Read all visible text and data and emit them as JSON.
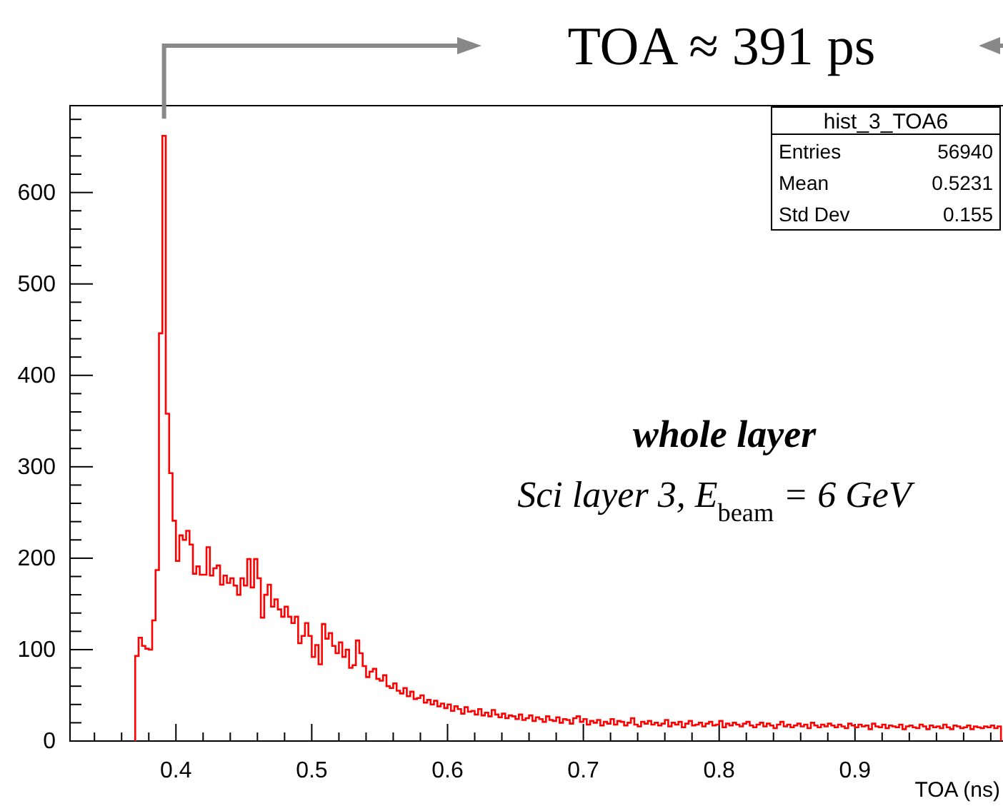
{
  "chart_data": {
    "type": "histogram",
    "xlabel": "TOA (ns)",
    "color": "#ff0000",
    "xlim": [
      0.322,
      1.009
    ],
    "ylim": [
      0,
      695
    ],
    "xticks": [
      {
        "value": 0.34,
        "label": null
      },
      {
        "value": 0.36,
        "label": null
      },
      {
        "value": 0.38,
        "label": null
      },
      0.4,
      {
        "value": 0.42,
        "label": null
      },
      {
        "value": 0.44,
        "label": null
      },
      {
        "value": 0.46,
        "label": null
      },
      {
        "value": 0.48,
        "label": null
      },
      0.5,
      {
        "value": 0.52,
        "label": null
      },
      {
        "value": 0.54,
        "label": null
      },
      {
        "value": 0.56,
        "label": null
      },
      {
        "value": 0.58,
        "label": null
      },
      0.6,
      {
        "value": 0.62,
        "label": null
      },
      {
        "value": 0.64,
        "label": null
      },
      {
        "value": 0.66,
        "label": null
      },
      {
        "value": 0.68,
        "label": null
      },
      0.7,
      {
        "value": 0.72,
        "label": null
      },
      {
        "value": 0.74,
        "label": null
      },
      {
        "value": 0.76,
        "label": null
      },
      {
        "value": 0.78,
        "label": null
      },
      0.8,
      {
        "value": 0.82,
        "label": null
      },
      {
        "value": 0.84,
        "label": null
      },
      {
        "value": 0.86,
        "label": null
      },
      {
        "value": 0.88,
        "label": null
      },
      0.9,
      {
        "value": 0.92,
        "label": null
      },
      {
        "value": 0.94,
        "label": null
      },
      {
        "value": 0.96,
        "label": null
      },
      {
        "value": 0.98,
        "label": null
      },
      {
        "value": 1.0,
        "label": null
      }
    ],
    "yticks": [
      0,
      {
        "value": 20,
        "label": null
      },
      {
        "value": 40,
        "label": null
      },
      {
        "value": 60,
        "label": null
      },
      {
        "value": 80,
        "label": null
      },
      100,
      {
        "value": 120,
        "label": null
      },
      {
        "value": 140,
        "label": null
      },
      {
        "value": 160,
        "label": null
      },
      {
        "value": 180,
        "label": null
      },
      200,
      {
        "value": 220,
        "label": null
      },
      {
        "value": 240,
        "label": null
      },
      {
        "value": 260,
        "label": null
      },
      {
        "value": 280,
        "label": null
      },
      300,
      {
        "value": 320,
        "label": null
      },
      {
        "value": 340,
        "label": null
      },
      {
        "value": 360,
        "label": null
      },
      {
        "value": 380,
        "label": null
      },
      400,
      {
        "value": 420,
        "label": null
      },
      {
        "value": 440,
        "label": null
      },
      {
        "value": 460,
        "label": null
      },
      {
        "value": 480,
        "label": null
      },
      500,
      {
        "value": 520,
        "label": null
      },
      {
        "value": 540,
        "label": null
      },
      {
        "value": 560,
        "label": null
      },
      {
        "value": 580,
        "label": null
      },
      600,
      {
        "value": 620,
        "label": null
      },
      {
        "value": 640,
        "label": null
      },
      {
        "value": 660,
        "label": null
      },
      {
        "value": 680,
        "label": null
      }
    ],
    "bins": [
      0.37,
      0.3725,
      0.375,
      0.3775,
      0.38,
      0.3825,
      0.385,
      0.3875,
      0.39,
      0.3925,
      0.395,
      0.3975,
      0.4,
      0.4025,
      0.405,
      0.4075,
      0.41,
      0.4125,
      0.415,
      0.4175,
      0.42,
      0.4225,
      0.425,
      0.4275,
      0.43,
      0.4325,
      0.435,
      0.4375,
      0.44,
      0.4425,
      0.445,
      0.4475,
      0.45,
      0.4525,
      0.455,
      0.4575,
      0.46,
      0.4625,
      0.465,
      0.4675,
      0.47,
      0.4725,
      0.475,
      0.4775,
      0.48,
      0.4825,
      0.485,
      0.4875,
      0.49,
      0.4925,
      0.495,
      0.4975,
      0.5,
      0.5025,
      0.505,
      0.5075,
      0.51,
      0.5125,
      0.515,
      0.5175,
      0.52,
      0.5225,
      0.525,
      0.5275,
      0.53,
      0.5325,
      0.535,
      0.5375,
      0.54,
      0.5425,
      0.545,
      0.5475,
      0.55,
      0.5525,
      0.555,
      0.5575,
      0.56,
      0.5625,
      0.565,
      0.5675,
      0.57,
      0.5725,
      0.575,
      0.5775,
      0.58,
      0.5825,
      0.585,
      0.5875,
      0.59,
      0.5925,
      0.595,
      0.5975,
      0.6,
      0.6025,
      0.605,
      0.6075,
      0.61,
      0.6125,
      0.615,
      0.6175,
      0.62,
      0.6225,
      0.625,
      0.6275,
      0.63,
      0.6325,
      0.635,
      0.6375,
      0.64,
      0.6425,
      0.645,
      0.6475,
      0.65,
      0.6525,
      0.655,
      0.6575,
      0.66,
      0.6625,
      0.665,
      0.6675,
      0.67,
      0.6725,
      0.675,
      0.6775,
      0.68,
      0.6825,
      0.685,
      0.6875,
      0.69,
      0.6925,
      0.695,
      0.6975,
      0.7,
      0.7025,
      0.705,
      0.7075,
      0.71,
      0.7125,
      0.715,
      0.7175,
      0.72,
      0.7225,
      0.725,
      0.7275,
      0.73,
      0.7325,
      0.735,
      0.7375,
      0.74,
      0.7425,
      0.745,
      0.7475,
      0.75,
      0.7525,
      0.755,
      0.7575,
      0.76,
      0.7625,
      0.765,
      0.7675,
      0.77,
      0.7725,
      0.775,
      0.7775,
      0.78,
      0.7825,
      0.785,
      0.7875,
      0.79,
      0.7925,
      0.795,
      0.7975,
      0.8,
      0.8025,
      0.805,
      0.8075,
      0.81,
      0.8125,
      0.815,
      0.8175,
      0.82,
      0.8225,
      0.825,
      0.8275,
      0.83,
      0.8325,
      0.835,
      0.8375,
      0.84,
      0.8425,
      0.845,
      0.8475,
      0.85,
      0.8525,
      0.855,
      0.8575,
      0.86,
      0.8625,
      0.865,
      0.8675,
      0.87,
      0.8725,
      0.875,
      0.8775,
      0.88,
      0.8825,
      0.885,
      0.8875,
      0.89,
      0.8925,
      0.895,
      0.8975,
      0.9,
      0.9025,
      0.905,
      0.9075,
      0.91,
      0.9125,
      0.915,
      0.9175,
      0.92,
      0.9225,
      0.925,
      0.9275,
      0.93,
      0.9325,
      0.935,
      0.9375,
      0.94,
      0.9425,
      0.945,
      0.9475,
      0.95,
      0.9525,
      0.955,
      0.9575,
      0.96,
      0.9625,
      0.965,
      0.9675,
      0.97,
      0.9725,
      0.975,
      0.9775,
      0.98,
      0.9825,
      0.985,
      0.9875,
      0.99,
      0.9925,
      0.995,
      0.9975,
      1.0,
      1.0025,
      1.005,
      1.0075
    ],
    "values": [
      93,
      113,
      104,
      101,
      100,
      132,
      187,
      446,
      662,
      358,
      293,
      241,
      197,
      225,
      220,
      230,
      215,
      183,
      191,
      182,
      182,
      212,
      181,
      189,
      192,
      171,
      181,
      173,
      178,
      170,
      160,
      178,
      170,
      199,
      168,
      199,
      178,
      135,
      160,
      171,
      147,
      155,
      144,
      136,
      147,
      136,
      129,
      136,
      107,
      115,
      129,
      115,
      92,
      105,
      84,
      128,
      112,
      118,
      104,
      96,
      108,
      92,
      100,
      80,
      83,
      110,
      96,
      82,
      70,
      76,
      79,
      68,
      66,
      72,
      60,
      58,
      63,
      55,
      52,
      58,
      49,
      54,
      46,
      47,
      50,
      42,
      45,
      40,
      44,
      38,
      41,
      36,
      40,
      33,
      38,
      35,
      30,
      37,
      32,
      33,
      29,
      35,
      28,
      31,
      27,
      34,
      29,
      26,
      30,
      25,
      28,
      27,
      24,
      29,
      23,
      25,
      28,
      22,
      26,
      24,
      21,
      27,
      23,
      22,
      26,
      20,
      24,
      23,
      19,
      25,
      27,
      21,
      24,
      18,
      22,
      20,
      23,
      17,
      21,
      19,
      24,
      18,
      22,
      21,
      17,
      20,
      25,
      18,
      16,
      21,
      19,
      22,
      18,
      20,
      17,
      19,
      23,
      16,
      20,
      18,
      21,
      15,
      19,
      22,
      17,
      18,
      20,
      16,
      19,
      21,
      17,
      18,
      22,
      15,
      19,
      17,
      20,
      18,
      16,
      19,
      21,
      17,
      15,
      18,
      20,
      16,
      19,
      17,
      14,
      18,
      21,
      16,
      18,
      15,
      17,
      19,
      16,
      18,
      14,
      20,
      17,
      15,
      18,
      16,
      19,
      17,
      15,
      18,
      16,
      14,
      19,
      17,
      15,
      18,
      16,
      17,
      13,
      19,
      16,
      15,
      18,
      14,
      17,
      16,
      15,
      18,
      13,
      16,
      17,
      15,
      14,
      18,
      16,
      13,
      17,
      15,
      16,
      14,
      18,
      15,
      13,
      17,
      16,
      14,
      15,
      17,
      13,
      16,
      15,
      14,
      16,
      15,
      17,
      14,
      16
    ],
    "annotations": [
      "TOA ≈ 391 ps",
      "whole layer",
      "Sci layer 3, E$_{beam}$ = 6 GeV",
      "hist_3_TOA6",
      "Entries",
      "56940",
      "Mean",
      "0.5231",
      "Std Dev",
      "0.155"
    ]
  }
}
